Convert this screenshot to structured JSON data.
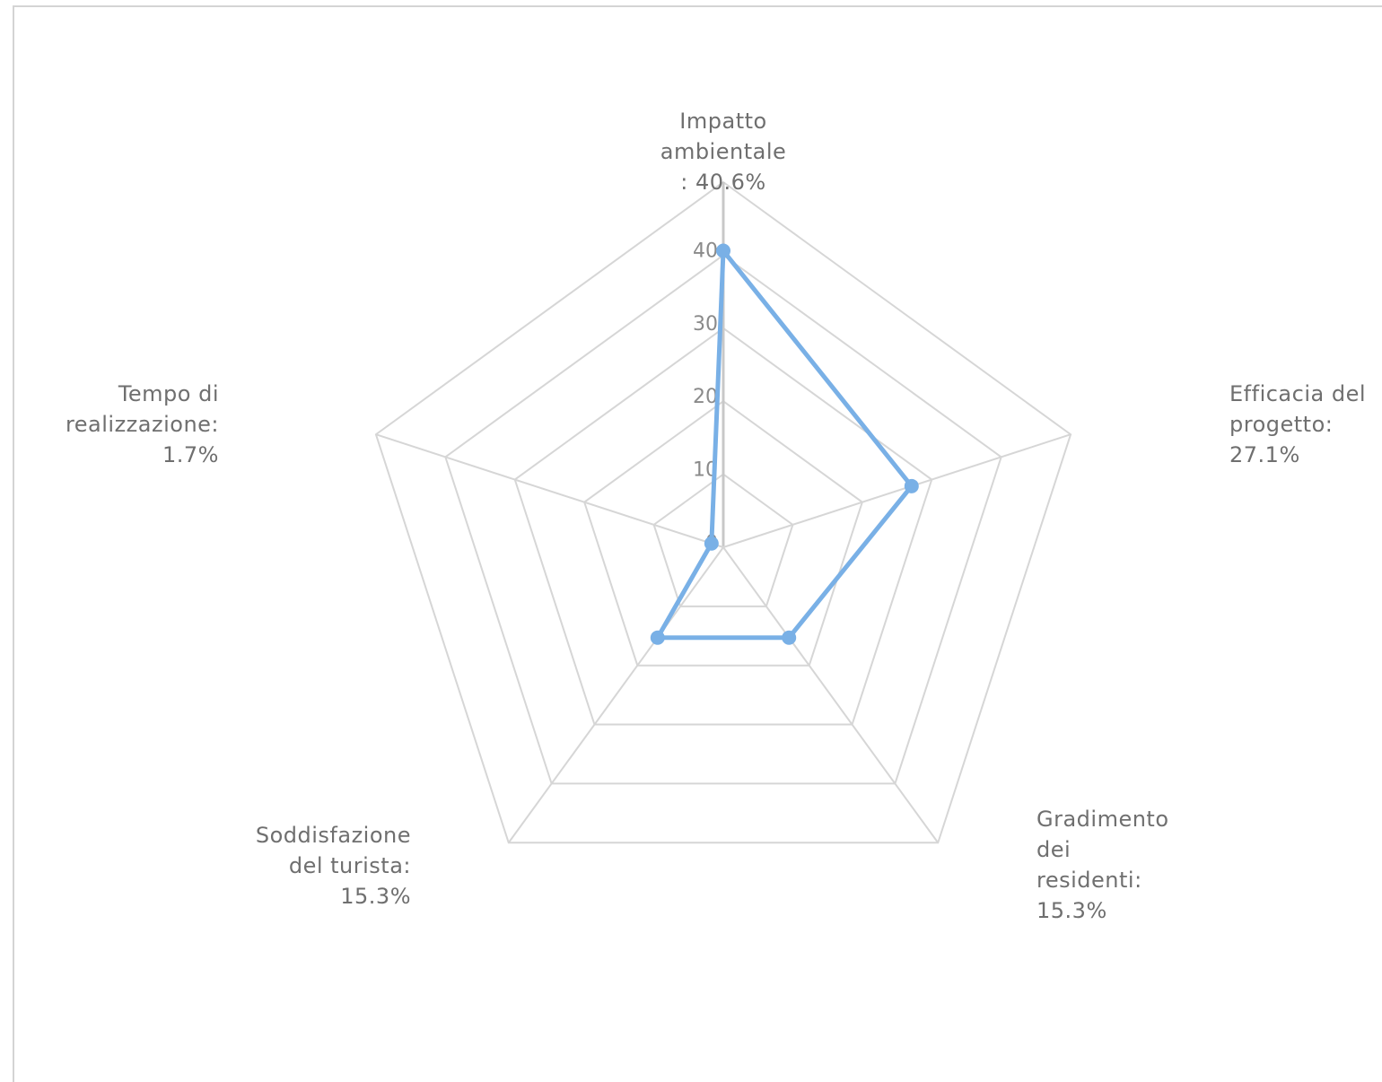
{
  "chart_data": {
    "type": "radar",
    "categories": [
      "Impatto ambientale",
      "Efficacia del progetto",
      "Gradimento dei residenti",
      "Soddisfazione del turista",
      "Tempo di realizzazione"
    ],
    "values": [
      40.6,
      27.1,
      15.3,
      15.3,
      1.7
    ],
    "r_ticks": [
      "0",
      "10",
      "20",
      "30",
      "40"
    ],
    "rlim": [
      0,
      50
    ],
    "grid": true,
    "series_color": "#79b0e6",
    "grid_color": "#d6d6d6",
    "labels": [
      {
        "lines": [
          "Impatto",
          "ambientale",
          ": 40.6%"
        ]
      },
      {
        "lines": [
          "Efficacia del",
          "progetto:",
          "27.1%"
        ]
      },
      {
        "lines": [
          "Gradimento",
          "dei",
          "residenti:",
          "15.3%"
        ]
      },
      {
        "lines": [
          "Soddisfazione",
          "del turista:",
          "15.3%"
        ]
      },
      {
        "lines": [
          "Tempo di",
          "realizzazione:",
          "1.7%"
        ]
      }
    ]
  }
}
